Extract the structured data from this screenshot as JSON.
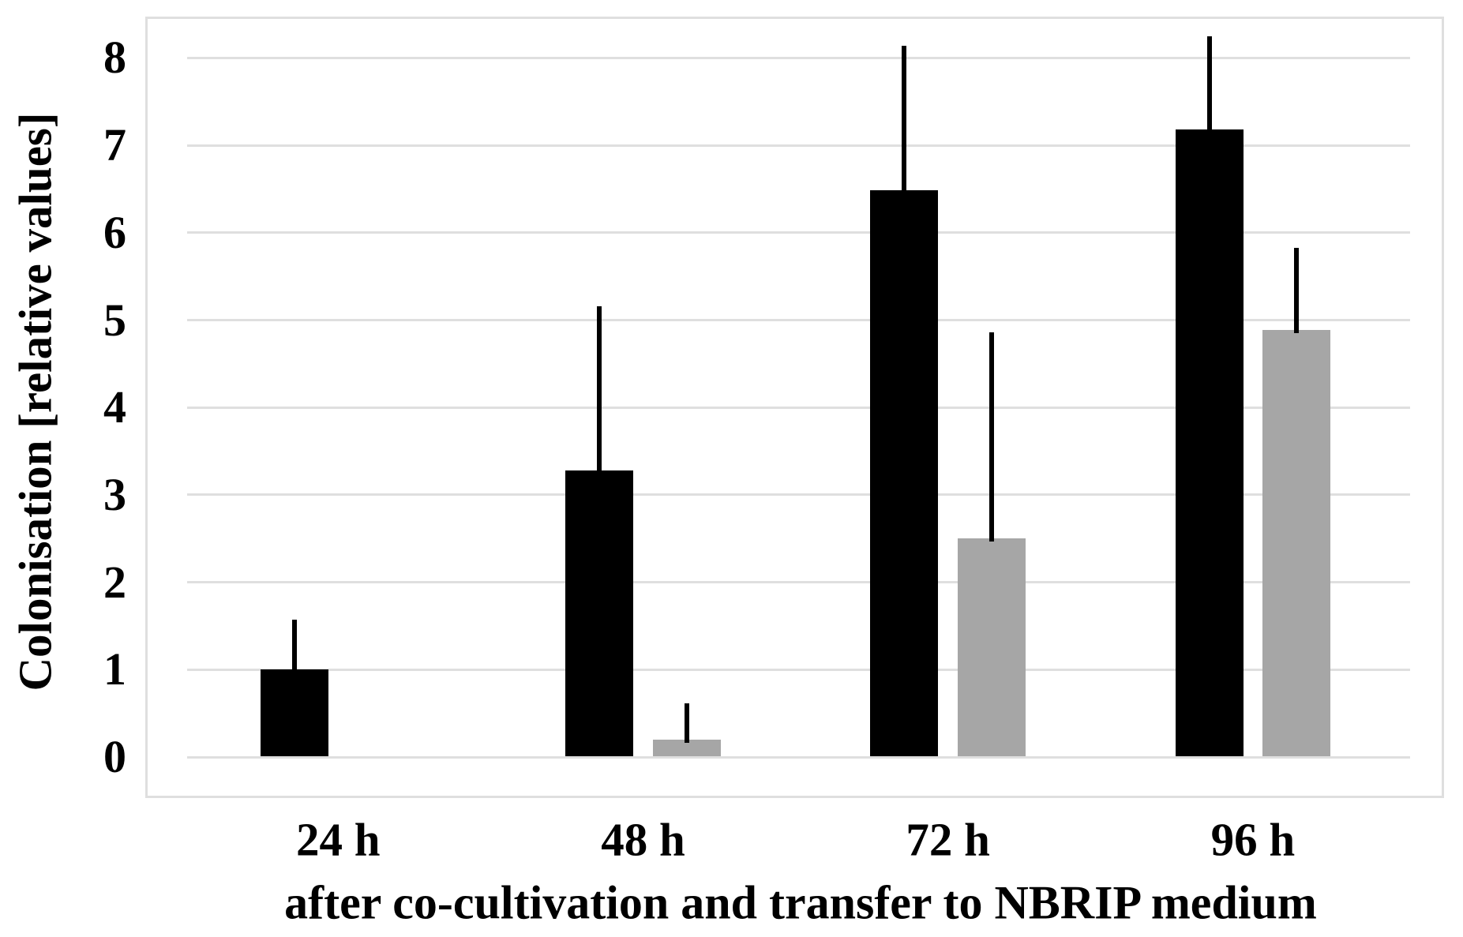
{
  "chart_data": {
    "type": "bar",
    "title": "",
    "xlabel": "after co-cultivation and transfer to NBRIP medium",
    "ylabel": "Colonisation [relative values]",
    "categories": [
      "24 h",
      "48 h",
      "72 h",
      "96 h"
    ],
    "series": [
      {
        "name": "black",
        "color": "#000000",
        "values": [
          1.0,
          3.28,
          6.49,
          7.18
        ],
        "error_plus": [
          0.57,
          1.88,
          1.65,
          1.07
        ]
      },
      {
        "name": "grey",
        "color": "#a6a6a6",
        "values": [
          0,
          0.2,
          2.5,
          4.89
        ],
        "error_plus": [
          0,
          0.41,
          2.36,
          0.94
        ]
      }
    ],
    "y_ticks": [
      0,
      1,
      2,
      3,
      4,
      5,
      6,
      7,
      8
    ],
    "ylim": [
      0,
      8
    ],
    "grid": true,
    "legend_position": "none",
    "error_bars": "plus-only-no-caps",
    "gridline_color": "#dfdfdf",
    "background_color": "#ffffff"
  }
}
